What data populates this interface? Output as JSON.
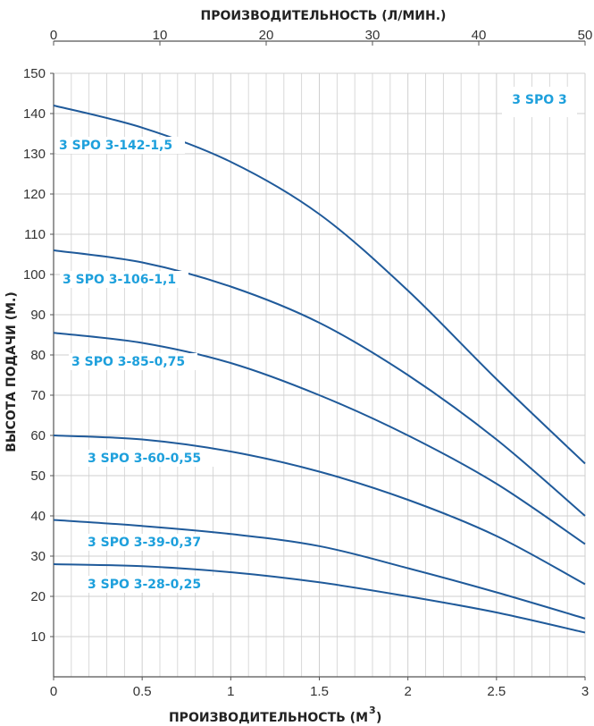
{
  "chart_data": {
    "type": "line",
    "series_label": "3 SPO 3",
    "xlabel_top": "ПРОИЗВОДИТЕЛЬНОСТЬ (Л/МИН.)",
    "xlabel_bottom": "ПРОИЗВОДИТЕЛЬНОСТЬ (М",
    "xlabel_bottom_sup": "3",
    "xlabel_bottom_close": ")",
    "ylabel": "ВЫСОТА ПОДАЧИ (М.)",
    "xlim": [
      0,
      3
    ],
    "ylim": [
      0,
      150
    ],
    "xlim_top": [
      0,
      50
    ],
    "x_ticks": [
      "0",
      "0.5",
      "1",
      "1.5",
      "2",
      "2.5",
      "3"
    ],
    "x_tick_values": [
      0,
      0.5,
      1,
      1.5,
      2,
      2.5,
      3
    ],
    "x_ticks_top": [
      "0",
      "10",
      "20",
      "30",
      "40",
      "50"
    ],
    "x_tick_values_top": [
      0,
      10,
      20,
      30,
      40,
      50
    ],
    "y_ticks": [
      "10",
      "20",
      "30",
      "40",
      "50",
      "60",
      "70",
      "80",
      "90",
      "100",
      "110",
      "120",
      "130",
      "140",
      "150"
    ],
    "y_tick_values": [
      10,
      20,
      30,
      40,
      50,
      60,
      70,
      80,
      90,
      100,
      110,
      120,
      130,
      140,
      150
    ],
    "grid": true,
    "colors": {
      "curve": "#1f5a9a",
      "label": "#1ea0dc",
      "grid": "#cfcfcf",
      "axis": "#555555"
    },
    "series": [
      {
        "name": "3 SPO 3-142-1,5",
        "x": [
          0,
          0.5,
          1,
          1.5,
          2,
          2.5,
          3
        ],
        "y": [
          142,
          136.5,
          128,
          115,
          96,
          74,
          53
        ]
      },
      {
        "name": "3 SPO 3-106-1,1",
        "x": [
          0,
          0.5,
          1,
          1.5,
          2,
          2.5,
          3
        ],
        "y": [
          106,
          103,
          97,
          88,
          75,
          59,
          40
        ]
      },
      {
        "name": "3 SPO 3-85-0,75",
        "x": [
          0,
          0.5,
          1,
          1.5,
          2,
          2.5,
          3
        ],
        "y": [
          85.5,
          83,
          78,
          70,
          60,
          48,
          33
        ]
      },
      {
        "name": "3 SPO 3-60-0,55",
        "x": [
          0,
          0.5,
          1,
          1.5,
          2,
          2.5,
          3
        ],
        "y": [
          60,
          59,
          56,
          51,
          44,
          35,
          23
        ]
      },
      {
        "name": "3 SPO 3-39-0,37",
        "x": [
          0,
          0.5,
          1,
          1.5,
          2,
          2.5,
          3
        ],
        "y": [
          39,
          37.5,
          35.5,
          32.5,
          27,
          21,
          14.5
        ]
      },
      {
        "name": "3 SPO 3-28-0,25",
        "x": [
          0,
          0.5,
          1,
          1.5,
          2,
          2.5,
          3
        ],
        "y": [
          28,
          27.5,
          26,
          23.5,
          20,
          16,
          11
        ]
      }
    ]
  }
}
